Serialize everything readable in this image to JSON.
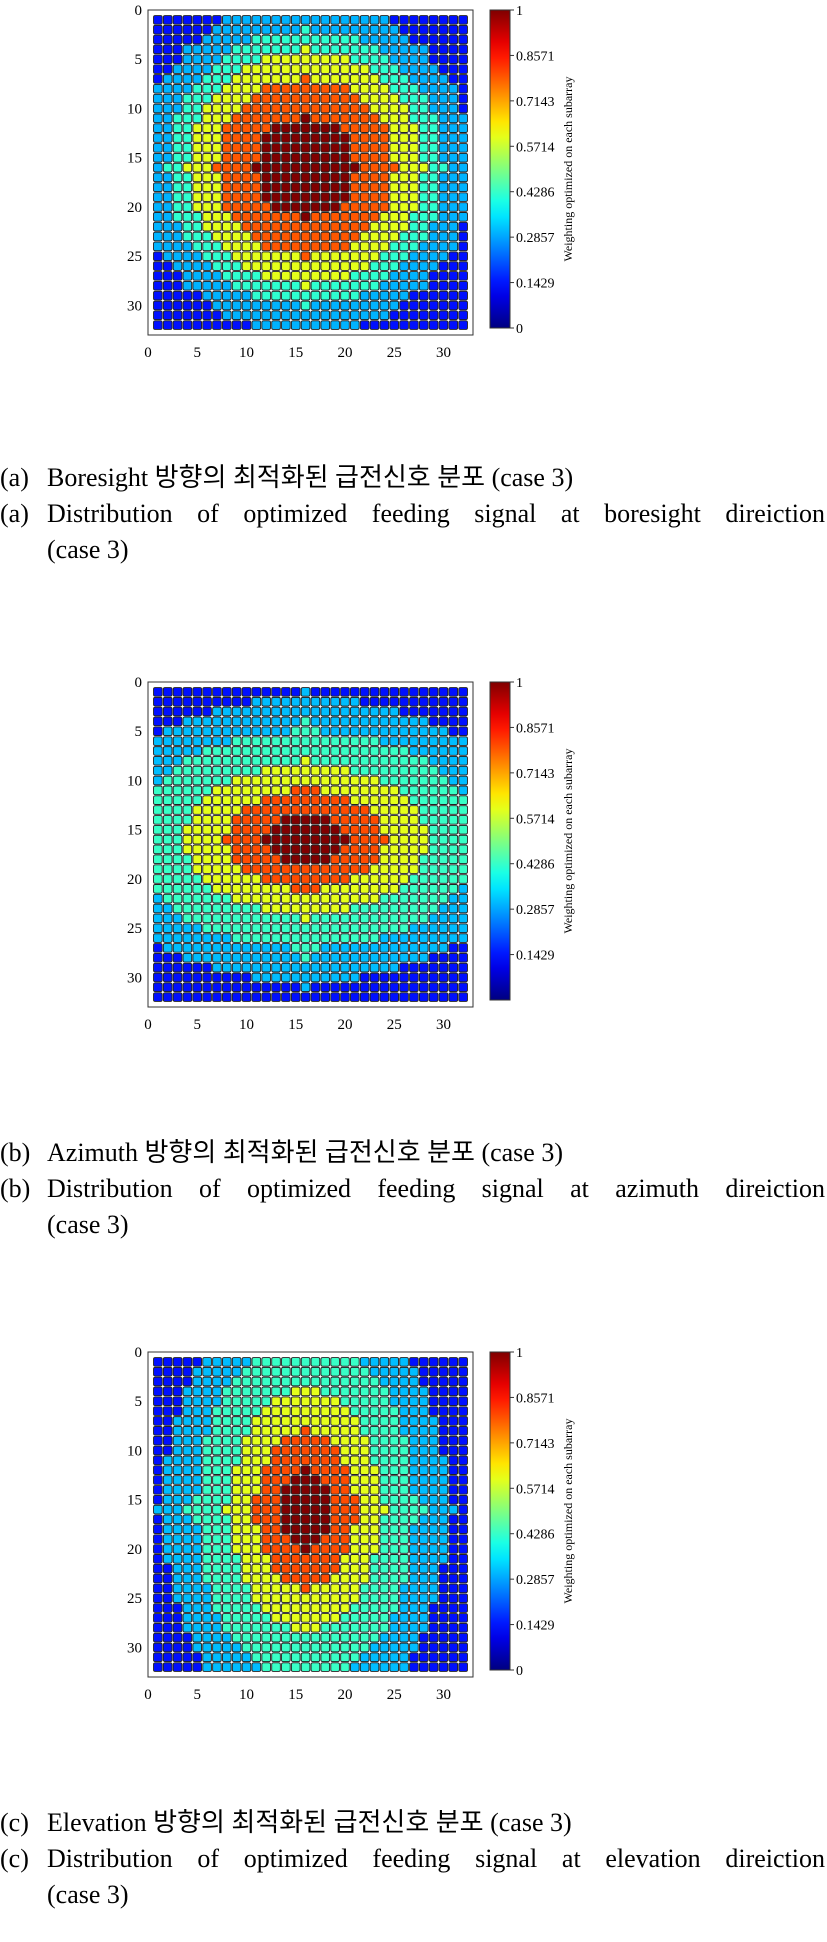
{
  "colormap": "jet",
  "panels": [
    {
      "caption_ko": {
        "mark": "(a)",
        "text": "Boresight 방향의 최적화된 급전신호 분포 (case 3)"
      },
      "caption_en": {
        "mark": "(a)",
        "line1": "Distribution of optimized feeding signal at boresight direiction",
        "line2": "(case 3)"
      }
    },
    {
      "caption_ko": {
        "mark": "(b)",
        "text": "Azimuth 방향의 최적화된 급전신호 분포 (case 3)"
      },
      "caption_en": {
        "mark": "(b)",
        "line1": "Distribution of optimized feeding signal at azimuth direiction",
        "line2": "(case 3)"
      }
    },
    {
      "caption_ko": {
        "mark": "(c)",
        "text": "Elevation 방향의 최적화된 급전신호 분포 (case 3)"
      },
      "caption_en": {
        "mark": "(c)",
        "line1": "Distribution of optimized feeding signal at elevation direiction",
        "line2": "(case 3)"
      }
    }
  ],
  "chart_data": [
    {
      "type": "heatmap",
      "grid_size": 32,
      "xlim": [
        0,
        33
      ],
      "ylim": [
        0,
        33
      ],
      "xticks": [
        "0",
        "5",
        "10",
        "15",
        "20",
        "25",
        "30"
      ],
      "yticks": [
        "0",
        "5",
        "10",
        "15",
        "20",
        "25",
        "30"
      ],
      "colorbar_label": "Weighting optimized on each subarray",
      "colorbar_ticks": [
        "1",
        "0.8571",
        "0.7143",
        "0.5714",
        "0.4286",
        "0.2857",
        "0.1429",
        "0"
      ],
      "clim": [
        0,
        1
      ],
      "pattern": "boresight",
      "levels": [
        {
          "value": 1.0,
          "extent": 5
        },
        {
          "value": 0.79,
          "extent": 9
        },
        {
          "value": 0.6,
          "extent": 12
        },
        {
          "value": 0.42,
          "extent": 14
        },
        {
          "value": 0.3,
          "extent": 17
        },
        {
          "value": 0.14,
          "extent": 99
        }
      ]
    },
    {
      "type": "heatmap",
      "grid_size": 32,
      "xlim": [
        0,
        33
      ],
      "ylim": [
        0,
        33
      ],
      "xticks": [
        "0",
        "5",
        "10",
        "15",
        "20",
        "25",
        "30"
      ],
      "yticks": [
        "0",
        "5",
        "10",
        "15",
        "20",
        "25",
        "30"
      ],
      "colorbar_label": "Weighting optimized on each subarray",
      "colorbar_ticks": [
        "1",
        "0.8571",
        "0.7143",
        "0.5714",
        "0.4286",
        "0.2857",
        "0.1429"
      ],
      "clim": [
        0,
        1
      ],
      "pattern": "azimuth",
      "levels": [
        {
          "value": 1.0,
          "extent": 3
        },
        {
          "value": 0.8,
          "extent": 6
        },
        {
          "value": 0.6,
          "extent": 9
        },
        {
          "value": 0.43,
          "extent": 13
        },
        {
          "value": 0.31,
          "extent": 17
        },
        {
          "value": 0.14,
          "extent": 99
        }
      ]
    },
    {
      "type": "heatmap",
      "grid_size": 32,
      "xlim": [
        0,
        33
      ],
      "ylim": [
        0,
        33
      ],
      "xticks": [
        "0",
        "5",
        "10",
        "15",
        "20",
        "25",
        "30"
      ],
      "yticks": [
        "0",
        "5",
        "10",
        "15",
        "20",
        "25",
        "30"
      ],
      "colorbar_label": "Weighting optimized on each subarray",
      "colorbar_ticks": [
        "1",
        "0.8571",
        "0.7143",
        "0.5714",
        "0.4286",
        "0.2857",
        "0.1429",
        "0"
      ],
      "clim": [
        0,
        1
      ],
      "pattern": "elevation",
      "levels": [
        {
          "value": 1.0,
          "extent": 3
        },
        {
          "value": 0.8,
          "extent": 6
        },
        {
          "value": 0.6,
          "extent": 9
        },
        {
          "value": 0.43,
          "extent": 13
        },
        {
          "value": 0.31,
          "extent": 17
        },
        {
          "value": 0.14,
          "extent": 99
        }
      ]
    }
  ]
}
